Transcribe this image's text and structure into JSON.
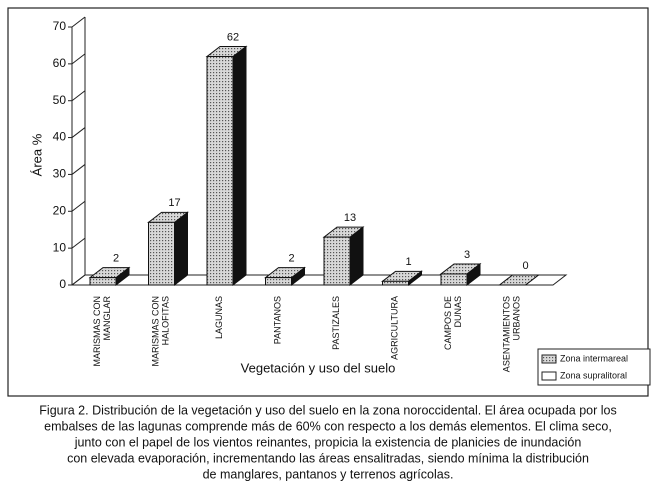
{
  "chart_data": {
    "type": "bar3d",
    "ylabel": "Área %",
    "xlabel": "Vegetación y uso del suelo",
    "categories": [
      "MARISMAS CON\nMANGLAR",
      "MARISMAS CON\nHALOFITAS",
      "LAGUNAS",
      "PANTANOS",
      "PASTIZALES",
      "AGRICULTURA",
      "CAMPOS DE\nDUNAS",
      "ASENTAMIENTOS\nURBANOS"
    ],
    "values": [
      2,
      17,
      62,
      2,
      13,
      1,
      3,
      0
    ],
    "color": "#b8b8b8",
    "ylim": [
      0,
      70
    ],
    "yticks": [
      0,
      10,
      20,
      30,
      40,
      50,
      60,
      70
    ],
    "legend": [
      {
        "name": "Zona intermareal",
        "color": "#b8b8b8"
      },
      {
        "name": "Zona supralitoral",
        "color": "#ffffff"
      }
    ],
    "caption": [
      "Figura 2. Distribución de la vegetación y uso del suelo en la zona noroccidental. El área ocupada por los",
      "embalses de las lagunas comprende más de 60% con respecto a los demás elementos. El clima seco,",
      "junto con el papel de los vientos reinantes, propicia la existencia de planicies de inundación",
      "con elevada evaporación, incrementando las áreas ensalitradas, siendo mínima la distribución",
      "de manglares, pantanos y terrenos agrícolas."
    ]
  }
}
